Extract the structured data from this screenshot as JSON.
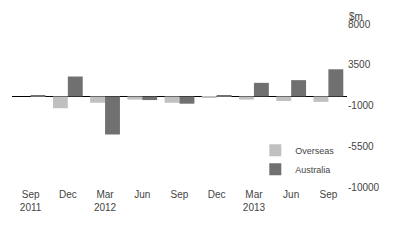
{
  "chart_data": {
    "type": "bar",
    "categories": [
      "Sep\n2011",
      "Dec",
      "Mar\n2012",
      "Jun",
      "Sep",
      "Dec",
      "Mar\n2013",
      "Jun",
      "Sep"
    ],
    "series": [
      {
        "name": "Overseas",
        "color": "#c0c0c0",
        "values": [
          0,
          -1300,
          -700,
          -350,
          -700,
          -150,
          -350,
          -500,
          -600
        ]
      },
      {
        "name": "Australia",
        "color": "#707070",
        "values": [
          50,
          2200,
          -4200,
          -400,
          -800,
          100,
          1500,
          1800,
          3000
        ]
      }
    ],
    "ylabel": "$m",
    "ylim": [
      -10000,
      8000
    ],
    "yticks": [
      -10000,
      -5500,
      -1000,
      3500,
      8000
    ],
    "grid": false,
    "legend": "lower right"
  }
}
